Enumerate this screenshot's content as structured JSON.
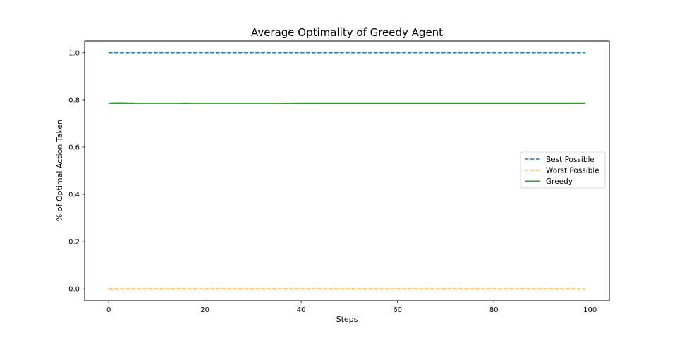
{
  "chart_data": {
    "type": "line",
    "title": "Average Optimality of Greedy Agent",
    "xlabel": "Steps",
    "ylabel": "% of Optimal Action Taken",
    "xlim": [
      -5,
      104
    ],
    "ylim": [
      -0.05,
      1.05
    ],
    "xticks": [
      0,
      20,
      40,
      60,
      80,
      100
    ],
    "yticks": [
      0.0,
      0.2,
      0.4,
      0.6,
      0.8,
      1.0
    ],
    "xtick_labels": [
      "0",
      "20",
      "40",
      "60",
      "80",
      "100"
    ],
    "ytick_labels": [
      "0.0",
      "0.2",
      "0.4",
      "0.6",
      "0.8",
      "1.0"
    ],
    "grid": false,
    "legend_position": "center-right",
    "series": [
      {
        "name": "Best Possible",
        "style": "dashed",
        "color": "#1f77b4",
        "x": [
          0,
          99
        ],
        "y": [
          1.0,
          1.0
        ]
      },
      {
        "name": "Worst Possible",
        "style": "dashed",
        "color": "#ff7f0e",
        "x": [
          0,
          99
        ],
        "y": [
          0.0,
          0.0
        ]
      },
      {
        "name": "Greedy",
        "style": "solid",
        "color": "#2ca02c",
        "x": [
          0,
          1,
          2,
          3,
          4,
          5,
          6,
          8,
          10,
          12,
          14,
          16,
          18,
          20,
          25,
          30,
          35,
          40,
          45,
          50,
          55,
          60,
          65,
          70,
          75,
          80,
          85,
          90,
          95,
          99
        ],
        "y": [
          0.785,
          0.787,
          0.787,
          0.787,
          0.786,
          0.786,
          0.785,
          0.785,
          0.785,
          0.785,
          0.785,
          0.786,
          0.785,
          0.785,
          0.785,
          0.785,
          0.785,
          0.786,
          0.786,
          0.786,
          0.786,
          0.786,
          0.786,
          0.786,
          0.786,
          0.786,
          0.786,
          0.786,
          0.786,
          0.786
        ]
      }
    ]
  }
}
